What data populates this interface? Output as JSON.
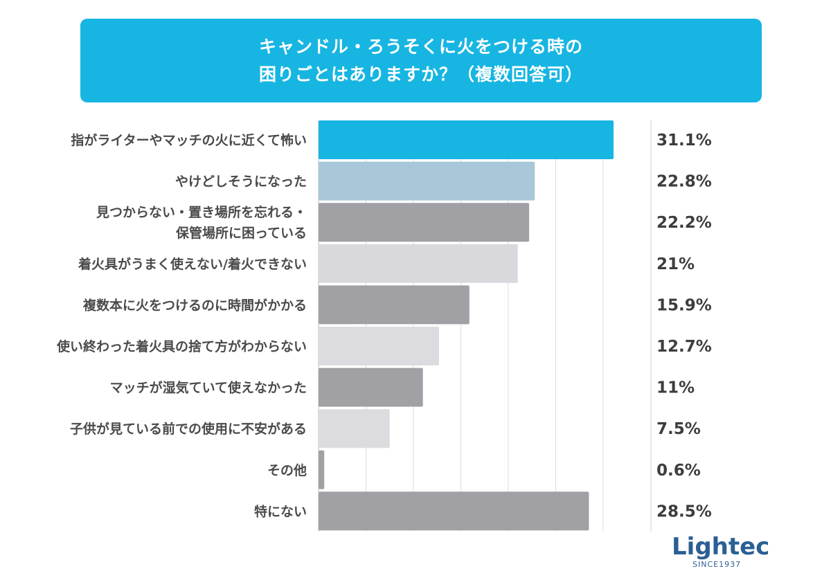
{
  "title": {
    "line1": "キャンドル・ろうそくに火をつける時の",
    "line2": "困りごとはありますか？（複数回答可）"
  },
  "chart_data": {
    "type": "bar",
    "orientation": "horizontal",
    "title": "キャンドル・ろうそくに火をつける時の困りごとはありますか？（複数回答可）",
    "categories": [
      [
        "指がライターやマッチの火に近くて怖い"
      ],
      [
        "やけどしそうになった"
      ],
      [
        "見つからない・置き場所を忘れる・",
        "保管場所に困っている"
      ],
      [
        "着火具がうまく使えない/着火できない"
      ],
      [
        "複数本に火をつけるのに時間がかかる"
      ],
      [
        "使い終わった着火具の捨て方がわからない"
      ],
      [
        "マッチが湿気ていて使えなかった"
      ],
      [
        "子供が見ている前での使用に不安がある"
      ],
      [
        "その他"
      ],
      [
        "特にない"
      ]
    ],
    "values": [
      31.1,
      22.8,
      22.2,
      21,
      15.9,
      12.7,
      11,
      7.5,
      0.6,
      28.5
    ],
    "value_labels": [
      "31.1%",
      "22.8%",
      "22.2%",
      "21%",
      "15.9%",
      "12.7%",
      "11%",
      "7.5%",
      "0.6%",
      "28.5%"
    ],
    "bar_colors": [
      "#17b5e2",
      "#a8c8d9",
      "#a0a0a5",
      "#d9d9dd",
      "#a0a0a5",
      "#dcdce0",
      "#a0a0a5",
      "#dcdce0",
      "#a0a0a5",
      "#a0a0a5"
    ],
    "label_colors": [
      "#1aa8d6",
      "#a9c5d6",
      "#3d3d3d",
      "#3d3d3d",
      "#3d3d3d",
      "#3d3d3d",
      "#3d3d3d",
      "#3d3d3d",
      "#3d3d3d",
      "#3d3d3d"
    ],
    "xlim": [
      0,
      31.1
    ],
    "grid": true,
    "legend": "none"
  },
  "logo": {
    "name": "Lightec",
    "sub": "SINCE1937"
  }
}
